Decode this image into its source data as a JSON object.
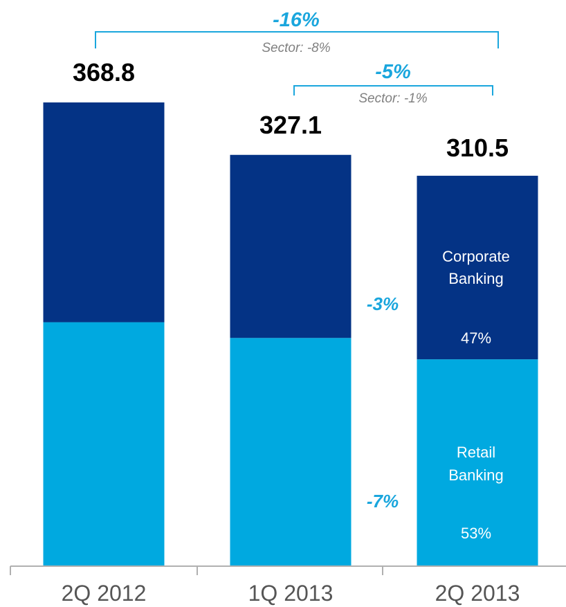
{
  "chart_data": {
    "type": "bar",
    "stacked": true,
    "categories": [
      "2Q 2012",
      "1Q 2013",
      "2Q 2013"
    ],
    "totals": [
      368.8,
      327.1,
      310.5
    ],
    "total_labels": [
      "368.8",
      "327.1",
      "310.5"
    ],
    "series": [
      {
        "name": "Retail Banking",
        "values": [
          194.0,
          181.5,
          164.5
        ],
        "color": "#00a9e0"
      },
      {
        "name": "Corporate Banking",
        "values": [
          174.8,
          145.6,
          146.0
        ],
        "color": "#043385"
      }
    ],
    "segment_labels": {
      "corporate": {
        "name_line1": "Corporate",
        "name_line2": "Banking",
        "share": "47%"
      },
      "retail": {
        "name_line1": "Retail",
        "name_line2": "Banking",
        "share": "53%"
      }
    },
    "changes": [
      {
        "from": 0,
        "to": 2,
        "value": "-16%",
        "sector": "Sector: -8%"
      },
      {
        "from": 1,
        "to": 2,
        "value": "-5%",
        "sector": "Sector: -1%"
      }
    ],
    "segment_changes": {
      "corporate": "-3%",
      "retail": "-7%"
    },
    "accent_color": "#1aa6dd",
    "ylim": [
      0,
      400
    ]
  }
}
